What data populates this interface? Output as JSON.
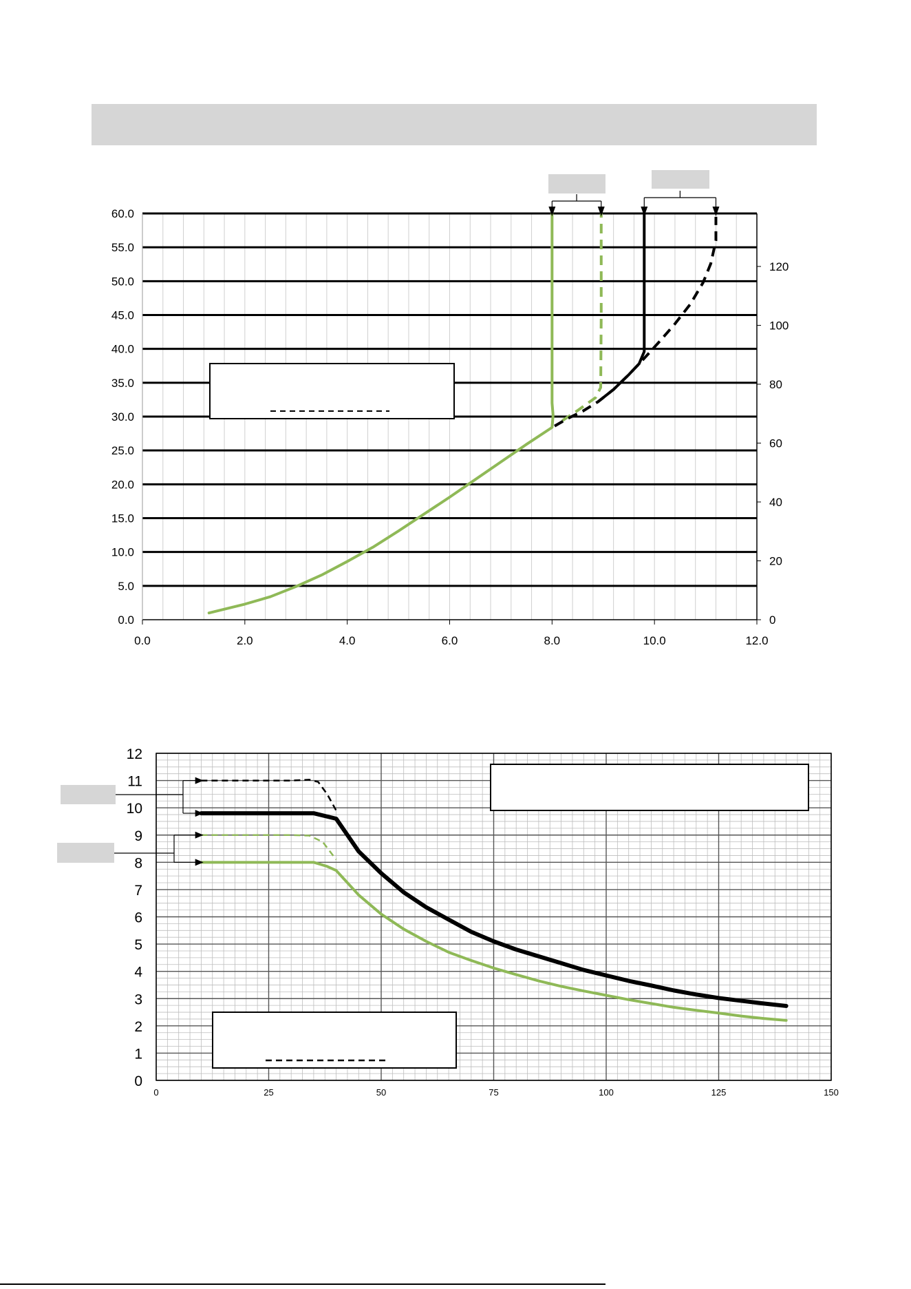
{
  "colors": {
    "green": "#8fb957",
    "black": "#000000",
    "label_gray": "#d6d6d6"
  },
  "chart_data": [
    {
      "type": "line",
      "xlim": [
        0,
        12
      ],
      "ylim": [
        0,
        60
      ],
      "y2lim": [
        0,
        138
      ],
      "x_ticks": [
        "0.0",
        "2.0",
        "4.0",
        "6.0",
        "8.0",
        "10.0",
        "12.0"
      ],
      "y_ticks": [
        "0.0",
        "5.0",
        "10.0",
        "15.0",
        "20.0",
        "25.0",
        "30.0",
        "35.0",
        "40.0",
        "45.0",
        "50.0",
        "55.0",
        "60.0"
      ],
      "y2_ticks": [
        "0",
        "20",
        "40",
        "60",
        "80",
        "100",
        "120"
      ],
      "grid": true,
      "series": [
        {
          "color": "green",
          "style": "solid",
          "x": [
            1.3,
            2.0,
            2.5,
            3.0,
            3.5,
            4.0,
            4.5,
            5.0,
            5.5,
            6.0,
            6.5,
            7.0,
            7.5,
            8.0,
            8.02,
            8.0,
            8.0,
            8.0
          ],
          "y": [
            1.0,
            2.3,
            3.4,
            4.9,
            6.6,
            8.6,
            10.7,
            13.1,
            15.6,
            18.1,
            20.7,
            23.3,
            25.9,
            28.4,
            30.2,
            32.0,
            45.0,
            60.0
          ]
        },
        {
          "color": "green",
          "style": "dashed",
          "x": [
            8.2,
            8.5,
            8.85,
            8.95,
            8.96,
            8.96
          ],
          "y": [
            29.4,
            30.9,
            32.8,
            34.3,
            45.0,
            60.0
          ]
        },
        {
          "color": "black",
          "style": "dashed",
          "x": [
            8.05,
            8.3,
            8.6,
            8.9,
            9.2,
            9.5,
            9.8,
            10.1,
            10.4,
            10.7,
            10.95,
            11.1,
            11.2,
            11.2
          ],
          "y": [
            28.6,
            29.7,
            30.8,
            32.2,
            34.0,
            36.2,
            38.6,
            41.1,
            43.7,
            46.6,
            49.8,
            52.6,
            56.0,
            59.5
          ]
        },
        {
          "color": "black",
          "style": "solid",
          "x": [
            8.9,
            9.2,
            9.5,
            9.7,
            9.8,
            9.8,
            9.8
          ],
          "y": [
            32.2,
            34.0,
            36.2,
            37.8,
            39.6,
            45.0,
            60.0
          ]
        }
      ]
    },
    {
      "type": "line",
      "xlim": [
        0,
        150
      ],
      "ylim": [
        0,
        12
      ],
      "x_ticks": [
        "0",
        "25",
        "50",
        "75",
        "100",
        "125",
        "150"
      ],
      "y_ticks": [
        "0",
        "1",
        "2",
        "3",
        "4",
        "5",
        "6",
        "7",
        "8",
        "9",
        "10",
        "11",
        "12"
      ],
      "grid": true,
      "series": [
        {
          "color": "black",
          "style": "dashed",
          "x": [
            10,
            20,
            30,
            34,
            36,
            38,
            40
          ],
          "y": [
            11.0,
            11.0,
            11.0,
            11.03,
            10.95,
            10.5,
            9.9
          ]
        },
        {
          "color": "black",
          "style": "solid",
          "x": [
            10,
            20,
            35,
            40,
            45,
            50,
            55,
            60,
            65,
            70,
            75,
            80,
            85,
            90,
            95,
            100,
            105,
            110,
            115,
            120,
            125,
            130,
            135,
            140
          ],
          "y": [
            9.8,
            9.8,
            9.8,
            9.6,
            8.4,
            7.6,
            6.9,
            6.35,
            5.9,
            5.45,
            5.1,
            4.8,
            4.55,
            4.3,
            4.05,
            3.85,
            3.65,
            3.48,
            3.3,
            3.15,
            3.02,
            2.92,
            2.82,
            2.73
          ]
        },
        {
          "color": "green",
          "style": "dashed",
          "x": [
            10,
            20,
            30,
            34,
            37,
            40
          ],
          "y": [
            9.0,
            9.0,
            9.0,
            8.98,
            8.75,
            8.1
          ]
        },
        {
          "color": "green",
          "style": "solid",
          "x": [
            10,
            20,
            30,
            35,
            38,
            40,
            45,
            50,
            55,
            60,
            65,
            70,
            75,
            80,
            85,
            90,
            95,
            100,
            105,
            110,
            115,
            120,
            125,
            130,
            135,
            140
          ],
          "y": [
            8.0,
            8.0,
            8.0,
            8.0,
            7.85,
            7.7,
            6.8,
            6.1,
            5.55,
            5.1,
            4.7,
            4.4,
            4.12,
            3.88,
            3.65,
            3.45,
            3.28,
            3.12,
            2.96,
            2.82,
            2.68,
            2.57,
            2.47,
            2.36,
            2.27,
            2.2
          ]
        }
      ]
    }
  ]
}
